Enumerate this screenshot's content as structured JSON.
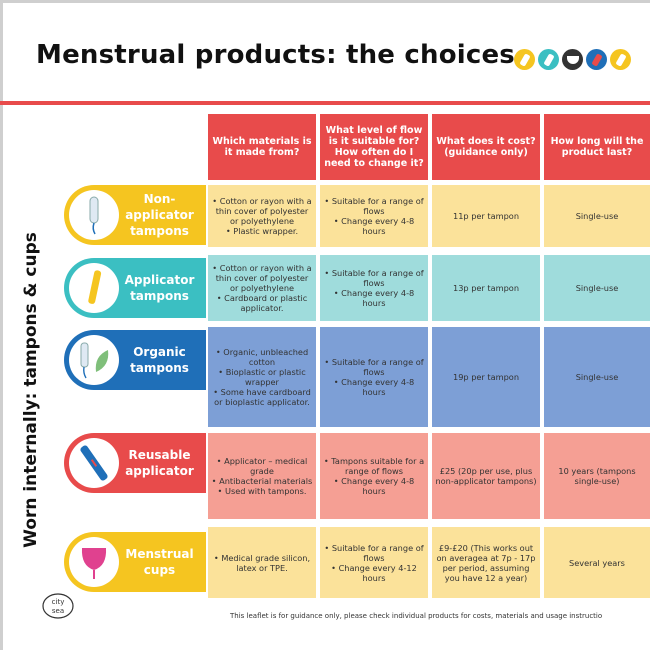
{
  "title": "Menstrual products: the choices",
  "side_label": "Worn internally: tampons & cups",
  "headers": [
    "Which materials is it made from?",
    "What level of flow is it suitable for? How often do I need to change it?",
    "What does it cost? (guidance only)",
    "How long will the product last?"
  ],
  "rows": [
    {
      "label": "Non-applicator tampons",
      "icon": "tampon-icon",
      "materials": [
        "• Cotton or rayon with a thin cover of polyester or polyethylene",
        "• Plastic wrapper."
      ],
      "flow": [
        "• Suitable for a range of flows",
        "• Change every 4-8 hours"
      ],
      "cost": "11p per tampon",
      "life": "Single-use"
    },
    {
      "label": "Applicator tampons",
      "icon": "applicator-tampon-icon",
      "materials": [
        "• Cotton or rayon with a thin cover of polyester or polyethylene",
        "• Cardboard or plastic applicator."
      ],
      "flow": [
        "• Suitable for a range of flows",
        "• Change every 4-8 hours"
      ],
      "cost": "13p per tampon",
      "life": "Single-use"
    },
    {
      "label": "Organic tampons",
      "icon": "organic-tampon-icon",
      "materials": [
        "• Organic, unbleached cotton",
        "• Bioplastic or plastic wrapper",
        "• Some have cardboard or bioplastic applicator."
      ],
      "flow": [
        "• Suitable for a range of flows",
        "• Change every 4-8 hours"
      ],
      "cost": "19p per tampon",
      "life": "Single-use"
    },
    {
      "label": "Reusable applicator",
      "icon": "reusable-applicator-icon",
      "materials": [
        "• Applicator – medical grade",
        "• Antibacterial materials",
        "• Used with tampons."
      ],
      "flow": [
        "• Tampons suitable for a range of flows",
        "• Change every 4-8 hours"
      ],
      "cost": "£25 (20p per use, plus non-applicator tampons)",
      "life": "10 years (tampons single-use)"
    },
    {
      "label": "Menstrual cups",
      "icon": "menstrual-cup-icon",
      "materials": [
        "• Medical grade silicon, latex or TPE."
      ],
      "flow": [
        "• Suitable for a range of flows",
        "• Change every 4-12 hours"
      ],
      "cost": "£9-£20 (This works out on averagea at 7p - 17p per period, assuming you have 12 a year)",
      "life": "Several years"
    }
  ],
  "footer": "This leaflet is for guidance only, please check individual products for costs, materials and usage instructio",
  "logo_text": "city sea",
  "colors": {
    "header_red": "#e84b4b",
    "yellow_dark": "#f5c520",
    "yellow_light": "#fbe29a",
    "teal_dark": "#3bbfc2",
    "teal_light": "#9fdcdc",
    "blue_dark": "#1f6fb8",
    "blue_light": "#7d9fd6",
    "red_dark": "#e84b4b",
    "red_light": "#f59f94"
  }
}
